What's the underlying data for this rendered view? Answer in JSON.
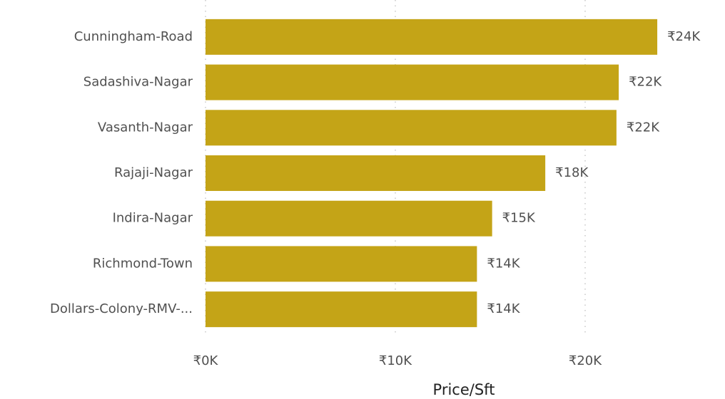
{
  "chart_data": {
    "type": "bar",
    "orientation": "horizontal",
    "x_label": "Price/Sft",
    "categories": [
      "Cunningham-Road",
      "Sadashiva-Nagar",
      "Vasanth-Nagar",
      "Rajaji-Nagar",
      "Indira-Nagar",
      "Richmond-Town",
      "Dollars-Colony-RMV-..."
    ],
    "values": [
      23800,
      21770,
      21650,
      17900,
      15100,
      14300,
      14300
    ],
    "value_labels": [
      "₹24K",
      "₹22K",
      "₹22K",
      "₹18K",
      "₹15K",
      "₹14K",
      "₹14K"
    ],
    "color": "#c4a417",
    "xlim": [
      0,
      25000
    ],
    "xticks": [
      {
        "value": 0,
        "label": "₹0K"
      },
      {
        "value": 10000,
        "label": "₹10K"
      },
      {
        "value": 20000,
        "label": "₹20K"
      }
    ],
    "grid": true
  }
}
